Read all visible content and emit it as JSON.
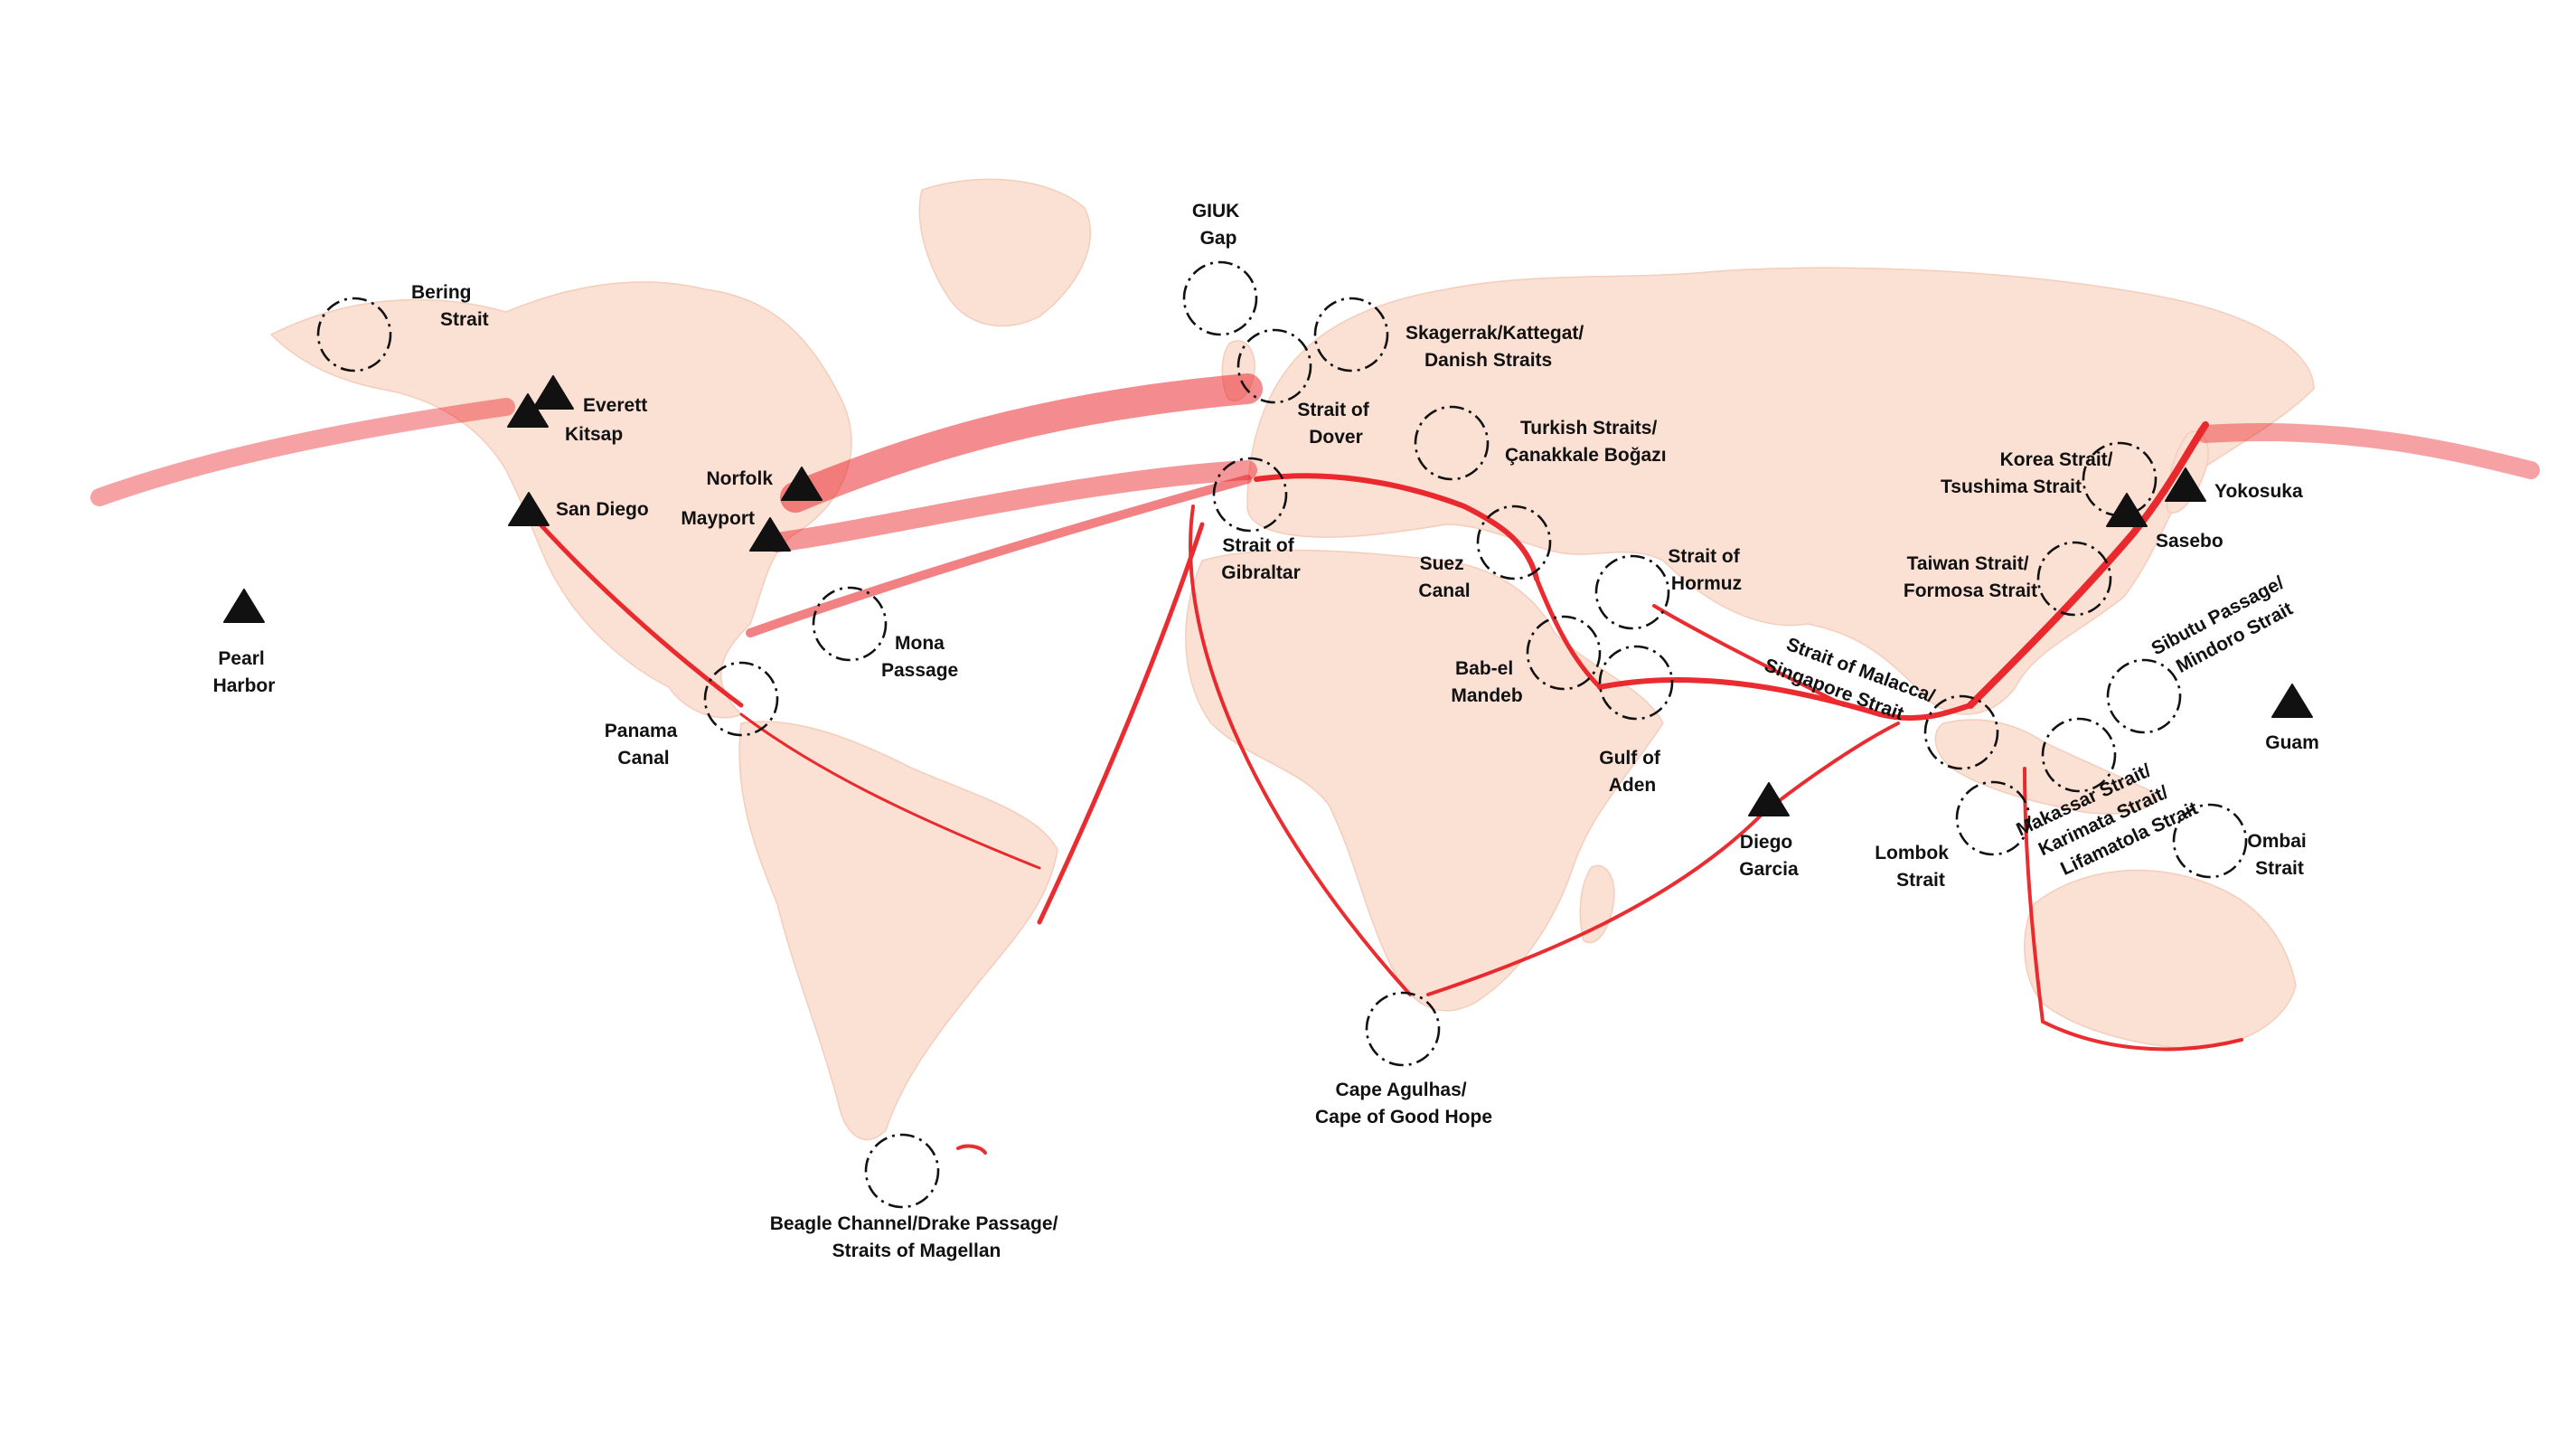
{
  "colors": {
    "shipping_traffic": "#e8161b",
    "land": "#fbe0d4",
    "background": "#ffffff",
    "labels": "#111111"
  },
  "icons": {
    "chokepoint": "dash-dot-circle-icon",
    "naval_base": "triangle-icon"
  },
  "chokepoints": [
    {
      "id": "bering",
      "lines": [
        "Bering",
        "Strait"
      ]
    },
    {
      "id": "giuk",
      "lines": [
        "GIUK",
        "Gap"
      ]
    },
    {
      "id": "skagerrak",
      "lines": [
        "Skagerrak/Kattegat/",
        "Danish Straits"
      ]
    },
    {
      "id": "dover",
      "lines": [
        "Strait of",
        "Dover"
      ]
    },
    {
      "id": "turkish",
      "lines": [
        "Turkish Straits/",
        "Çanakkale Boğazı"
      ]
    },
    {
      "id": "gibraltar",
      "lines": [
        "Strait of",
        "Gibraltar"
      ]
    },
    {
      "id": "suez",
      "lines": [
        "Suez",
        "Canal"
      ]
    },
    {
      "id": "hormuz",
      "lines": [
        "Strait of",
        "Hormuz"
      ]
    },
    {
      "id": "bab",
      "lines": [
        "Bab-el",
        "Mandeb"
      ]
    },
    {
      "id": "aden",
      "lines": [
        "Gulf of",
        "Aden"
      ]
    },
    {
      "id": "mona",
      "lines": [
        "Mona",
        "Passage"
      ]
    },
    {
      "id": "panama",
      "lines": [
        "Panama",
        "Canal"
      ]
    },
    {
      "id": "malacca",
      "lines": [
        "Strait of Malacca/",
        "Singapore Strait"
      ]
    },
    {
      "id": "korea",
      "lines": [
        "Korea Strait/",
        "Tsushima Strait"
      ]
    },
    {
      "id": "taiwan",
      "lines": [
        "Taiwan Strait/",
        "Formosa Strait"
      ]
    },
    {
      "id": "sibutu",
      "lines": [
        "Sibutu Passage/",
        "Mindoro Strait"
      ]
    },
    {
      "id": "makassar",
      "lines": [
        "Makassar Strait/",
        "Karimata Strait/",
        "Lifamatola Strait"
      ]
    },
    {
      "id": "lombok",
      "lines": [
        "Lombok",
        "Strait"
      ]
    },
    {
      "id": "ombai",
      "lines": [
        "Ombai",
        "Strait"
      ]
    },
    {
      "id": "agulhas",
      "lines": [
        "Cape Agulhas/",
        "Cape of Good Hope"
      ]
    },
    {
      "id": "beagle",
      "lines": [
        "Beagle Channel/Drake Passage/",
        "Straits of Magellan"
      ]
    }
  ],
  "bases": [
    {
      "id": "everett",
      "lines": [
        "Everett"
      ]
    },
    {
      "id": "kitsap",
      "lines": [
        "Kitsap"
      ]
    },
    {
      "id": "sandiego",
      "lines": [
        "San Diego"
      ]
    },
    {
      "id": "pearl",
      "lines": [
        "Pearl",
        "Harbor"
      ]
    },
    {
      "id": "norfolk",
      "lines": [
        "Norfolk"
      ]
    },
    {
      "id": "mayport",
      "lines": [
        "Mayport"
      ]
    },
    {
      "id": "diego",
      "lines": [
        "Diego",
        "Garcia"
      ]
    },
    {
      "id": "yokosuka",
      "lines": [
        "Yokosuka"
      ]
    },
    {
      "id": "sasebo",
      "lines": [
        "Sasebo"
      ]
    },
    {
      "id": "guam",
      "lines": [
        "Guam"
      ]
    }
  ]
}
